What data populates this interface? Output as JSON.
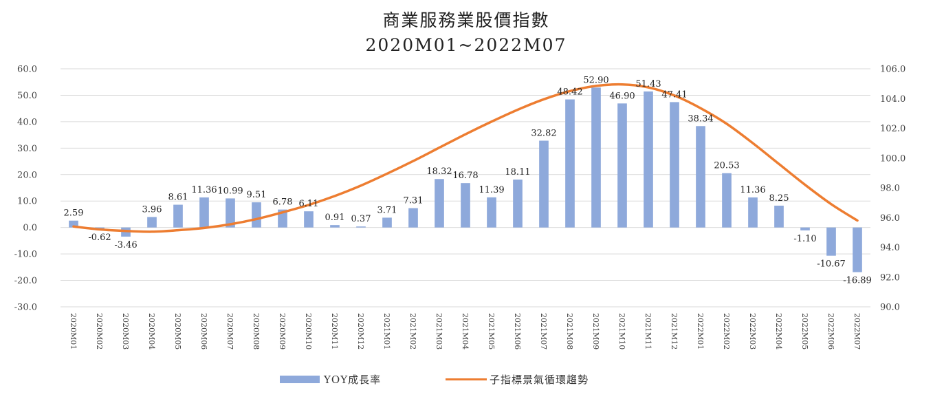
{
  "chart_data": {
    "type": "bar",
    "title": "商業服務業股價指數",
    "subtitle": "2020M01~2022M07",
    "categories": [
      "2020M01",
      "2020M02",
      "2020M03",
      "2020M04",
      "2020M05",
      "2020M06",
      "2020M07",
      "2020M08",
      "2020M09",
      "2020M10",
      "2020M11",
      "2020M12",
      "2021M01",
      "2021M02",
      "2021M03",
      "2021M04",
      "2021M05",
      "2021M06",
      "2021M07",
      "2021M08",
      "2021M09",
      "2021M10",
      "2021M11",
      "2021M12",
      "2022M01",
      "2022M02",
      "2022M03",
      "2022M04",
      "2022M05",
      "2022M06",
      "2022M07"
    ],
    "series": [
      {
        "name": "YOY成長率",
        "type": "bar",
        "axis": "left",
        "color": "#8EA9DB",
        "values": [
          2.59,
          -0.62,
          -3.46,
          3.96,
          8.61,
          11.36,
          10.99,
          9.51,
          6.78,
          6.11,
          0.91,
          0.37,
          3.71,
          7.31,
          18.32,
          16.78,
          11.39,
          18.11,
          32.82,
          48.42,
          52.9,
          46.9,
          51.43,
          47.41,
          38.34,
          20.53,
          11.36,
          8.25,
          -1.1,
          -10.67,
          -16.89
        ],
        "labels": [
          "2.59",
          "-0.62",
          "-3.46",
          "3.96",
          "8.61",
          "11.36",
          "10.99",
          "9.51",
          "6.78",
          "6.11",
          "0.91",
          "0.37",
          "3.71",
          "7.31",
          "18.32",
          "16.78",
          "11.39",
          "18.11",
          "32.82",
          "48.42",
          "52.90",
          "46.90",
          "51.43",
          "47.41",
          "38.34",
          "20.53",
          "11.36",
          "8.25",
          "-1.10",
          "-10.67",
          "-16.89"
        ]
      },
      {
        "name": "子指標景氣循環趨勢",
        "type": "line",
        "axis": "right",
        "color": "#ED7D31",
        "values": [
          95.4,
          95.2,
          95.1,
          95.05,
          95.15,
          95.3,
          95.55,
          95.9,
          96.35,
          96.85,
          97.45,
          98.15,
          98.95,
          99.8,
          100.7,
          101.6,
          102.45,
          103.25,
          103.95,
          104.5,
          104.85,
          104.95,
          104.75,
          104.2,
          103.35,
          102.3,
          101.0,
          99.6,
          98.2,
          96.9,
          95.8
        ]
      }
    ],
    "y_left": {
      "min": -30,
      "max": 60,
      "step": 10,
      "tick_labels": [
        "-30.0",
        "-20.0",
        "-10.0",
        "0.0",
        "10.0",
        "20.0",
        "30.0",
        "40.0",
        "50.0",
        "60.0"
      ]
    },
    "y_right": {
      "min": 90,
      "max": 106,
      "step": 2,
      "tick_labels": [
        "90.0",
        "92.0",
        "94.0",
        "96.0",
        "98.0",
        "100.0",
        "102.0",
        "104.0",
        "106.0"
      ]
    },
    "grid": true,
    "legend": {
      "position": "bottom",
      "entries": [
        "YOY成長率",
        "子指標景氣循環趨勢"
      ]
    },
    "colors": {
      "bar": "#8EA9DB",
      "line": "#ED7D31",
      "grid": "#D9D9D9"
    }
  }
}
